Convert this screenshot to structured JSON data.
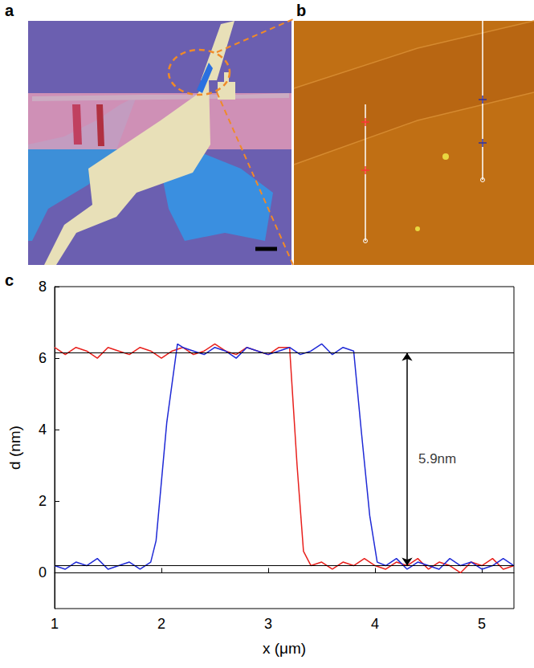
{
  "panel_labels": [
    "a",
    "b",
    "c"
  ],
  "chart_data": {
    "type": "line",
    "x_label": "x (μm)",
    "y_label": "d (nm)",
    "xlim": [
      1,
      5.3
    ],
    "xticks": [
      1,
      2,
      3,
      4,
      5
    ],
    "ylim": [
      -1,
      8
    ],
    "yticks": [
      0,
      2,
      4,
      6,
      8
    ],
    "grid": false,
    "series": [
      {
        "color": "#e8201c",
        "x": [
          1.0,
          1.1,
          1.2,
          1.3,
          1.4,
          1.5,
          1.6,
          1.7,
          1.8,
          1.9,
          2.0,
          2.1,
          2.2,
          2.3,
          2.4,
          2.5,
          2.6,
          2.7,
          2.8,
          2.9,
          3.0,
          3.1,
          3.2,
          3.27,
          3.33,
          3.4,
          3.5,
          3.6,
          3.7,
          3.8,
          3.9,
          4.0,
          4.1,
          4.2,
          4.3,
          4.4,
          4.5,
          4.6,
          4.7,
          4.8,
          4.9,
          5.0,
          5.1,
          5.2,
          5.3
        ],
        "values": [
          6.3,
          6.1,
          6.3,
          6.2,
          6.0,
          6.3,
          6.2,
          6.1,
          6.3,
          6.2,
          6.0,
          6.2,
          6.3,
          6.1,
          6.2,
          6.4,
          6.2,
          6.1,
          6.3,
          6.2,
          6.1,
          6.3,
          6.3,
          3.0,
          0.6,
          0.2,
          0.3,
          0.1,
          0.3,
          0.2,
          0.4,
          0.2,
          0.1,
          0.3,
          0.2,
          0.4,
          0.1,
          0.3,
          0.2,
          0.0,
          0.3,
          0.2,
          0.4,
          0.1,
          0.2
        ]
      },
      {
        "color": "#1f2ad6",
        "x": [
          1.0,
          1.1,
          1.2,
          1.3,
          1.4,
          1.5,
          1.6,
          1.7,
          1.8,
          1.9,
          1.95,
          2.05,
          2.15,
          2.2,
          2.3,
          2.4,
          2.5,
          2.6,
          2.7,
          2.8,
          2.9,
          3.0,
          3.1,
          3.2,
          3.3,
          3.4,
          3.5,
          3.6,
          3.7,
          3.8,
          3.87,
          3.95,
          4.02,
          4.1,
          4.2,
          4.3,
          4.4,
          4.5,
          4.6,
          4.7,
          4.8,
          4.9,
          5.0,
          5.1,
          5.2,
          5.3
        ],
        "values": [
          0.2,
          0.1,
          0.3,
          0.2,
          0.4,
          0.1,
          0.2,
          0.3,
          0.1,
          0.3,
          0.9,
          4.2,
          6.4,
          6.3,
          6.2,
          6.1,
          6.3,
          6.2,
          6.0,
          6.3,
          6.2,
          6.1,
          6.2,
          6.3,
          6.1,
          6.2,
          6.4,
          6.1,
          6.3,
          6.2,
          4.0,
          1.6,
          0.3,
          0.2,
          0.4,
          0.1,
          0.3,
          0.2,
          0.1,
          0.4,
          0.2,
          0.3,
          0.1,
          0.2,
          0.4,
          0.2
        ]
      }
    ],
    "reference_lines": [
      6.15,
      0.2
    ],
    "annotation": {
      "text": "5.9nm",
      "x": 4.3,
      "y_from": 0.2,
      "y_to": 6.15
    }
  }
}
